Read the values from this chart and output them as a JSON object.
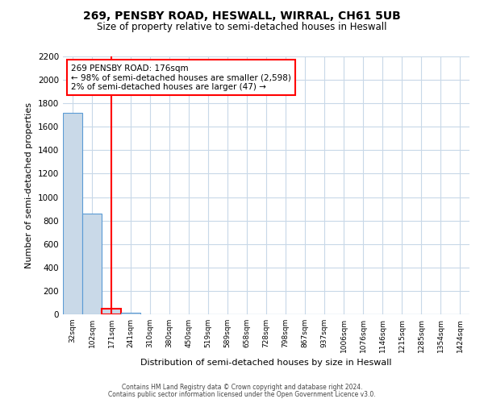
{
  "title": "269, PENSBY ROAD, HESWALL, WIRRAL, CH61 5UB",
  "subtitle": "Size of property relative to semi-detached houses in Heswall",
  "xlabel": "Distribution of semi-detached houses by size in Heswall",
  "ylabel": "Number of semi-detached properties",
  "bar_labels": [
    "32sqm",
    "102sqm",
    "171sqm",
    "241sqm",
    "310sqm",
    "380sqm",
    "450sqm",
    "519sqm",
    "589sqm",
    "658sqm",
    "728sqm",
    "798sqm",
    "867sqm",
    "937sqm",
    "1006sqm",
    "1076sqm",
    "1146sqm",
    "1215sqm",
    "1285sqm",
    "1354sqm",
    "1424sqm"
  ],
  "bar_values": [
    1722,
    862,
    47,
    14,
    0,
    0,
    0,
    0,
    0,
    0,
    0,
    0,
    0,
    0,
    0,
    0,
    0,
    0,
    0,
    0,
    0
  ],
  "bar_color": "#c9d9e8",
  "bar_edge_color": "#5b9bd5",
  "highlight_bar_index": 2,
  "highlight_edge_color": "#ff0000",
  "vline_color": "#ff0000",
  "annotation_title": "269 PENSBY ROAD: 176sqm",
  "annotation_line1": "← 98% of semi-detached houses are smaller (2,598)",
  "annotation_line2": "2% of semi-detached houses are larger (47) →",
  "annotation_box_color": "#ffffff",
  "annotation_box_edge": "#ff0000",
  "ylim": [
    0,
    2200
  ],
  "yticks": [
    0,
    200,
    400,
    600,
    800,
    1000,
    1200,
    1400,
    1600,
    1800,
    2000,
    2200
  ],
  "footer1": "Contains HM Land Registry data © Crown copyright and database right 2024.",
  "footer2": "Contains public sector information licensed under the Open Government Licence v3.0.",
  "bg_color": "#ffffff",
  "grid_color": "#c8d8e8"
}
